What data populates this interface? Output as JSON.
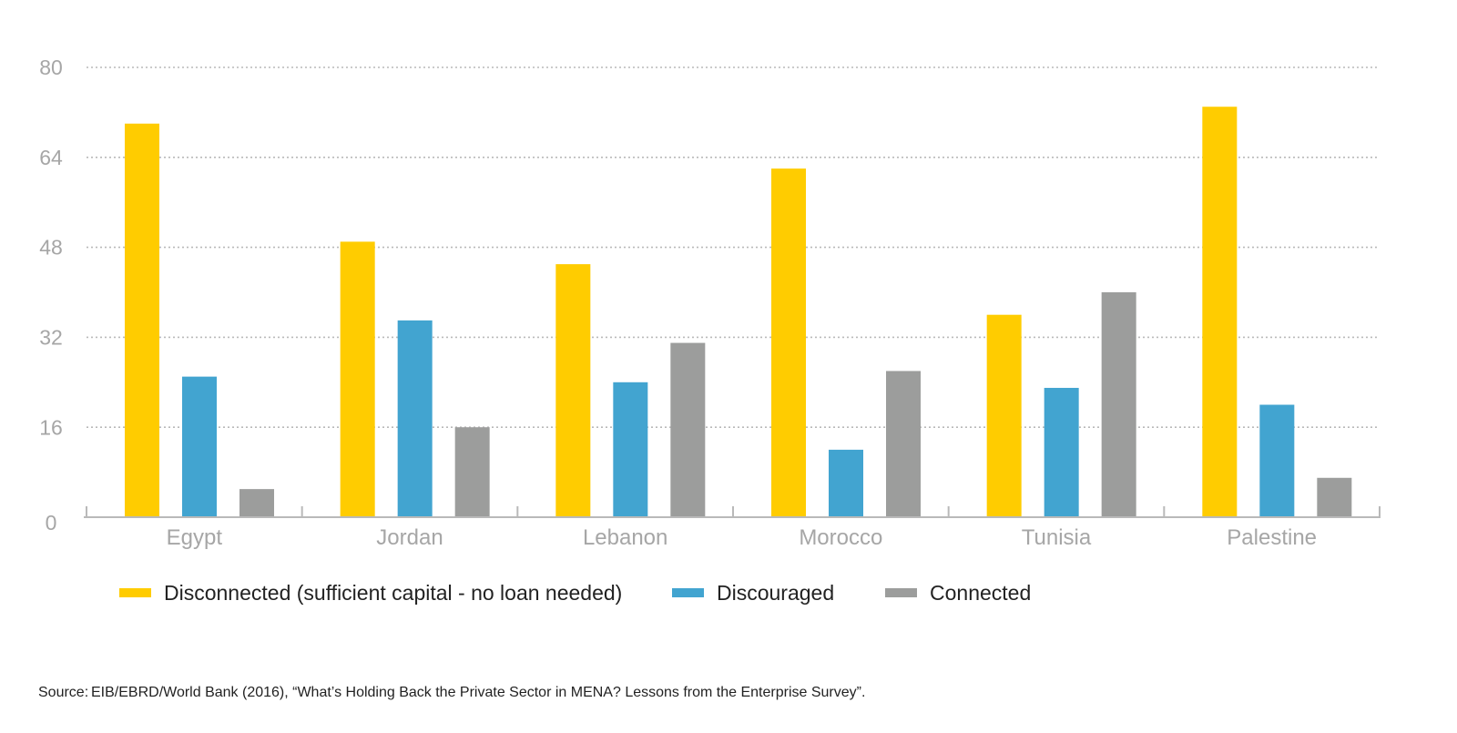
{
  "chart_data": {
    "type": "bar",
    "categories": [
      "Egypt",
      "Jordan",
      "Lebanon",
      "Morocco",
      "Tunisia",
      "Palestine"
    ],
    "series": [
      {
        "name": "Disconnected (sufficient capital - no loan needed)",
        "color": "#ffcc00",
        "values": [
          70,
          49,
          45,
          62,
          36,
          73
        ]
      },
      {
        "name": "Discouraged",
        "color": "#42a4d0",
        "values": [
          25,
          35,
          24,
          12,
          23,
          20
        ]
      },
      {
        "name": "Connected",
        "color": "#9c9d9c",
        "values": [
          5,
          16,
          31,
          26,
          40,
          7
        ]
      }
    ],
    "yticks": [
      "0",
      "16",
      "32",
      "48",
      "64",
      "80"
    ],
    "ylim": [
      0,
      80
    ],
    "grid": true,
    "legend_position": "bottom",
    "title": "",
    "xlabel": "",
    "ylabel": ""
  },
  "source": {
    "prefix": "Source:",
    "text": "EIB/EBRD/World Bank (2016), “What’s Holding Back the Private Sector in MENA? Lessons from the Enterprise Survey”."
  }
}
